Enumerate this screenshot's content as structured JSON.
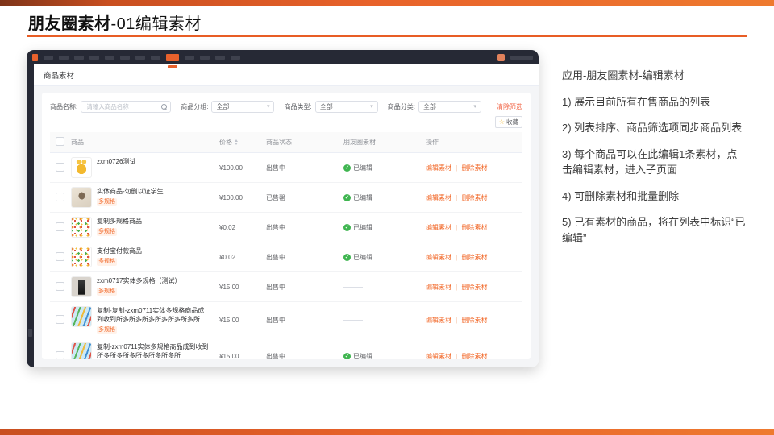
{
  "slide": {
    "title_bold": "朋友圈素材",
    "title_rest": "-01编辑素材",
    "accent_color": "#e85d25"
  },
  "notes": {
    "heading": "应用-朋友圈素材-编辑素材",
    "items": [
      "1) 展示目前所有在售商品的列表",
      "2) 列表排序、商品筛选项同步商品列表",
      "3) 每个商品可以在此编辑1条素材，点击编辑素材，进入子页面",
      "4) 可删除素材和批量删除",
      "5) 已有素材的商品，将在列表中标识“已编辑”"
    ]
  },
  "app": {
    "nav_items": [
      false,
      false,
      false,
      false,
      false,
      false,
      false,
      false,
      true,
      false,
      false,
      false,
      false
    ],
    "breadcrumb": "商品素材",
    "filters": {
      "name_label": "商品名称:",
      "name_placeholder": "请输入商品名称",
      "group_label": "商品分组:",
      "type_label": "商品类型:",
      "category_label": "商品分类:",
      "all_value": "全部",
      "clear_label": "清除筛选",
      "favorite_label": "收藏"
    },
    "table": {
      "headers": [
        "商品",
        "价格",
        "商品状态",
        "朋友圈素材",
        "操作"
      ],
      "spec_tag": "多规格",
      "edited_label": "已编辑",
      "actions": {
        "edit": "编辑素材",
        "delete": "删除素材"
      },
      "rows": [
        {
          "name": "zxm0726测试",
          "price": "¥100.00",
          "status": "出售中",
          "edited": true,
          "tag": false,
          "thumb": "giraffe"
        },
        {
          "name": "实体商品-勿删以证学生",
          "price": "¥100.00",
          "status": "已售罄",
          "edited": true,
          "tag": true,
          "thumb": "photo"
        },
        {
          "name": "复制多规格商品",
          "price": "¥0.02",
          "status": "出售中",
          "edited": true,
          "tag": true,
          "thumb": "confetti"
        },
        {
          "name": "支付宝付款商品",
          "price": "¥0.02",
          "status": "出售中",
          "edited": true,
          "tag": true,
          "thumb": "confetti"
        },
        {
          "name": "zxm0717实体多规格（测试）",
          "price": "¥15.00",
          "status": "出售中",
          "edited": false,
          "tag": true,
          "thumb": "dress"
        },
        {
          "name": "复制-复制-zxm0711实体多规格商品成到收到所多所多所多所多所多所多所多所",
          "price": "¥15.00",
          "status": "出售中",
          "edited": false,
          "tag": true,
          "thumb": "brushes"
        },
        {
          "name": "复制-zxm0711实体多规格商品成到收到所多所多所多所多所多所多所",
          "price": "¥15.00",
          "status": "出售中",
          "edited": true,
          "tag": true,
          "thumb": "brushes"
        }
      ]
    }
  },
  "colors": {
    "accent": "#e8612c",
    "action_link": "#f2692a",
    "clear_link": "#f2684a",
    "edited_green": "#3fb550",
    "navbar_dark": "#262935"
  }
}
